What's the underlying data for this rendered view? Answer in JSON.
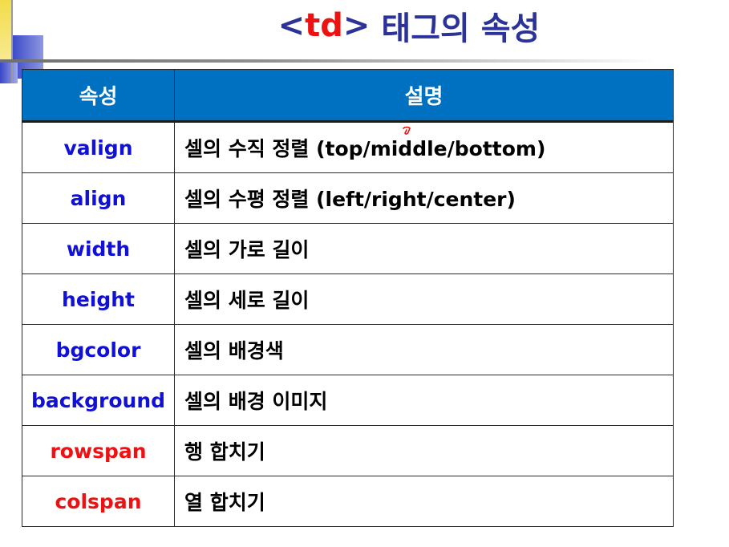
{
  "title": {
    "open": "<",
    "tag": "td",
    "close": ">",
    "suffix": "태그의 속성"
  },
  "table": {
    "headers": [
      "속성",
      "설명"
    ],
    "rows": [
      {
        "attr": "valign",
        "desc": "셀의 수직 정렬 (top/middle/bottom)"
      },
      {
        "attr": "align",
        "desc": "셀의 수평 정렬 (left/right/center)"
      },
      {
        "attr": "width",
        "desc": "셀의 가로 길이"
      },
      {
        "attr": "height",
        "desc": "셀의 세로 길이"
      },
      {
        "attr": "bgcolor",
        "desc": "셀의 배경색"
      },
      {
        "attr": "background",
        "desc": "셀의 배경 이미지"
      },
      {
        "attr": "rowspan",
        "desc": "행 합치기"
      },
      {
        "attr": "colspan",
        "desc": "열 합치기"
      }
    ]
  },
  "colors": {
    "title": "#2c3398",
    "title_tag": "#ee1111",
    "header_bg": "#0070c0",
    "attr_text": "#1010d6",
    "span_attr_text": "#ee1111",
    "annotation": "#ee1111"
  },
  "annotations": {
    "pen_mark_icon": "red-pen-annotation-icon"
  }
}
